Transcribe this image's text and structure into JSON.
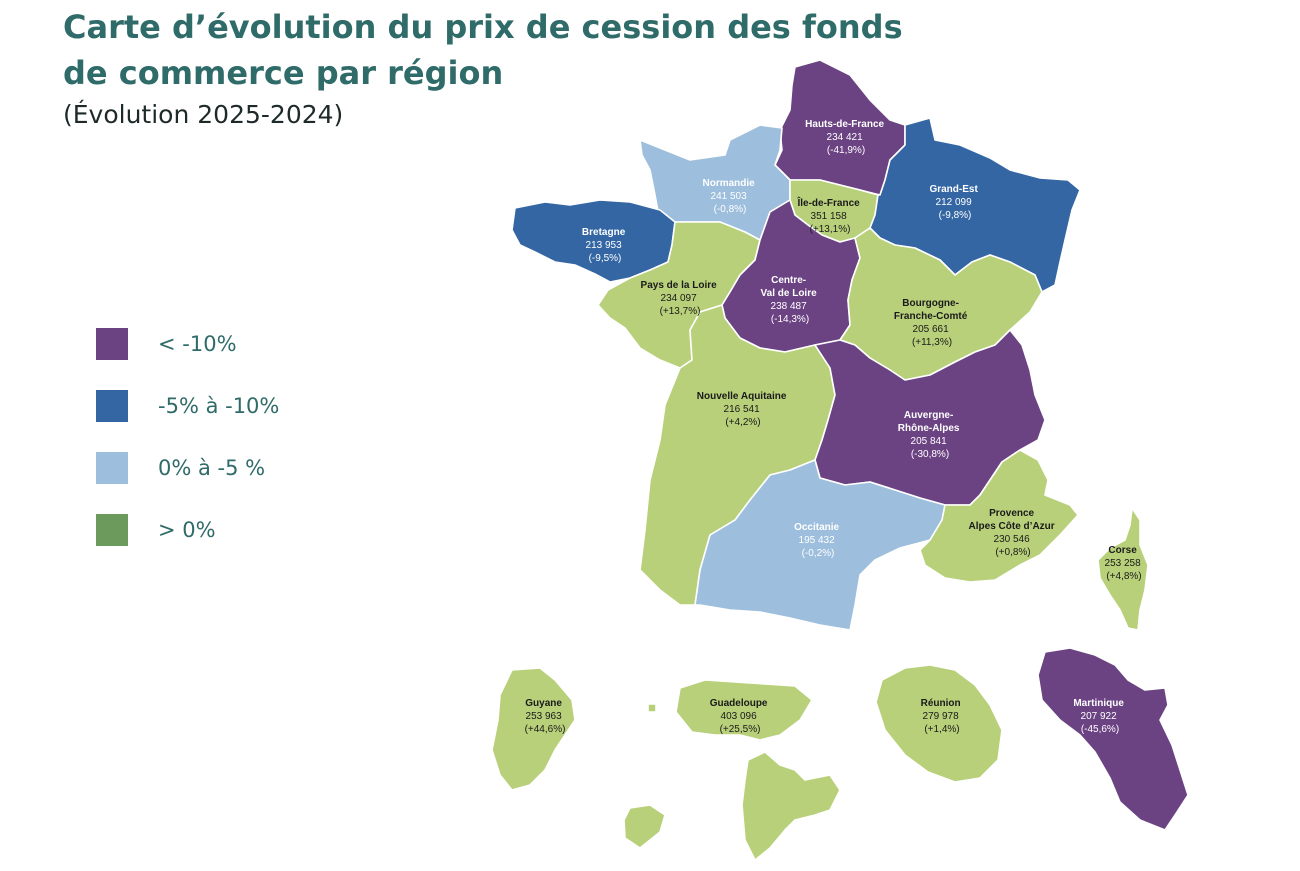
{
  "title": {
    "line1": "Carte d’évolution du prix de cession des fonds",
    "line2": "de commerce par région",
    "subtitle": "(Évolution  2025-2024)"
  },
  "colors": {
    "purple": "#6b4383",
    "blue": "#3366a3",
    "light_blue": "#9dbedc",
    "green": "#b8d07a",
    "legend_green": "#6b9a5c",
    "title": "#2f6b69"
  },
  "legend": [
    {
      "label": "< -10%",
      "color": "#6b4383"
    },
    {
      "label": "-5% à -10%",
      "color": "#3366a3"
    },
    {
      "label": " 0% à -5 %",
      "color": "#9dbedc"
    },
    {
      "label": "> 0%",
      "color": "#6b9a5c"
    }
  ],
  "regions": {
    "hauts_de_france": {
      "name": "Hauts-de-France",
      "price": "234 421",
      "change": "(-41,9%)"
    },
    "normandie": {
      "name": "Normandie",
      "price": "241 503",
      "change": "(-0,8%)"
    },
    "ile_de_france": {
      "name": "Île-de-France",
      "price": "351 158",
      "change": "(+13,1%)"
    },
    "grand_est": {
      "name": "Grand-Est",
      "price": "212 099",
      "change": "(-9,8%)"
    },
    "bretagne": {
      "name": "Bretagne",
      "price": "213 953",
      "change": "(-9,5%)"
    },
    "pays_de_la_loire": {
      "name": "Pays de la Loire",
      "price": "234 097",
      "change": "(+13,7%)"
    },
    "centre_val_de_loire": {
      "name1": "Centre-",
      "name2": "Val de Loire",
      "price": "238 487",
      "change": "(-14,3%)"
    },
    "bourgogne_franche_comte": {
      "name1": "Bourgogne-",
      "name2": "Franche-Comté",
      "price": "205 661",
      "change": "(+11,3%)"
    },
    "nouvelle_aquitaine": {
      "name": "Nouvelle Aquitaine",
      "price": "216 541",
      "change": "(+4,2%)"
    },
    "auvergne_rhone_alpes": {
      "name1": "Auvergne-",
      "name2": "Rhône-Alpes",
      "price": "205 841",
      "change": "(-30,8%)"
    },
    "occitanie": {
      "name": "Occitanie",
      "price": "195 432",
      "change": "(-0,2%)"
    },
    "paca": {
      "name1": "Provence",
      "name2": "Alpes Côte d’Azur",
      "price": "230 546",
      "change": "(+0,8%)"
    },
    "corse": {
      "name": "Corse",
      "price": "253 258",
      "change": "(+4,8%)"
    },
    "guyane": {
      "name": "Guyane",
      "price": "253 963",
      "change": "(+44,6%)"
    },
    "guadeloupe": {
      "name": "Guadeloupe",
      "price": "403 096",
      "change": "(+25,5%)"
    },
    "reunion": {
      "name": "Réunion",
      "price": "279 978",
      "change": "(+1,4%)"
    },
    "martinique": {
      "name": "Martinique",
      "price": "207 922",
      "change": "(-45,6%)"
    }
  }
}
